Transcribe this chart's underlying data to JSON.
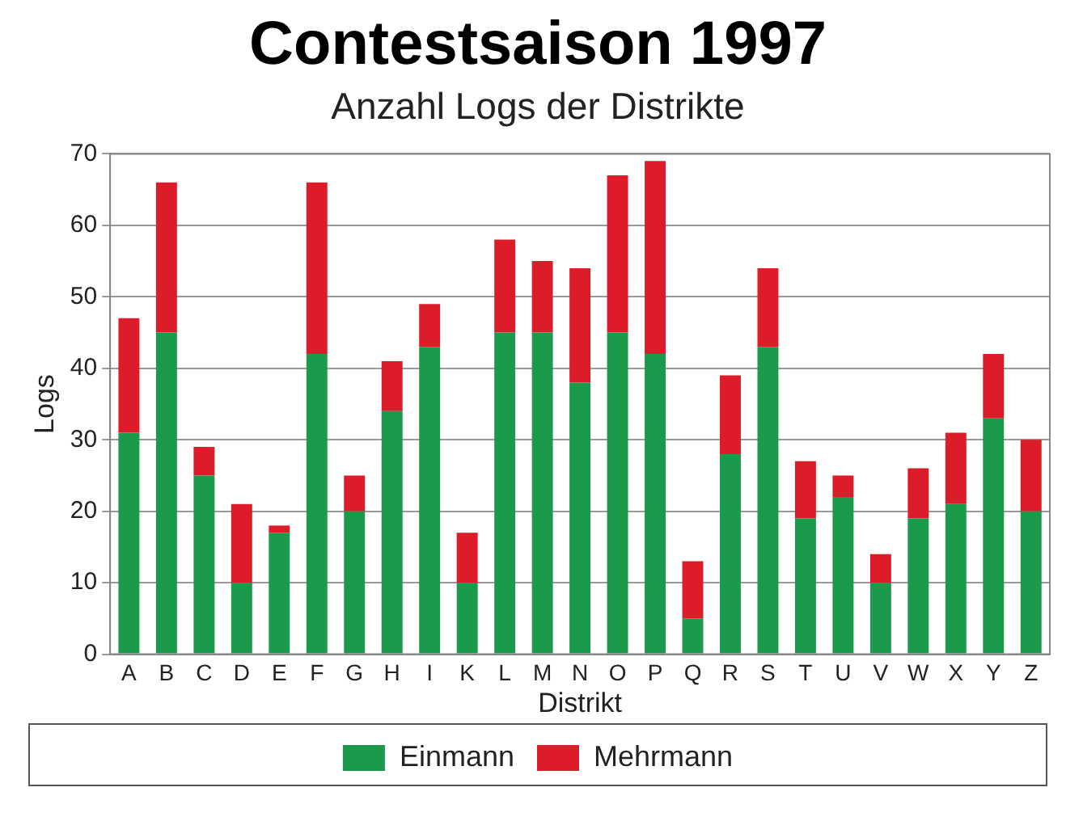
{
  "chart_data": {
    "type": "bar",
    "title": "Contestsaison 1997",
    "subtitle": "Anzahl Logs der Distrikte",
    "xlabel": "Distrikt",
    "ylabel": "Logs",
    "categories": [
      "A",
      "B",
      "C",
      "D",
      "E",
      "F",
      "G",
      "H",
      "I",
      "K",
      "L",
      "M",
      "N",
      "O",
      "P",
      "Q",
      "R",
      "S",
      "T",
      "U",
      "V",
      "W",
      "X",
      "Y",
      "Z"
    ],
    "series": [
      {
        "name": "Einmann",
        "color": "#1a9a4a",
        "values": [
          31,
          45,
          25,
          10,
          17,
          42,
          20,
          34,
          43,
          10,
          45,
          45,
          38,
          45,
          42,
          5,
          28,
          43,
          19,
          22,
          10,
          19,
          21,
          33,
          20
        ]
      },
      {
        "name": "Mehrmann",
        "color": "#dd1c2a",
        "values": [
          16,
          21,
          4,
          11,
          1,
          24,
          5,
          7,
          6,
          7,
          13,
          10,
          16,
          22,
          27,
          8,
          11,
          11,
          8,
          3,
          4,
          7,
          10,
          9,
          10
        ]
      }
    ],
    "stacked": true,
    "ylim": [
      0,
      70
    ],
    "yticks": [
      0,
      10,
      20,
      30,
      40,
      50,
      60,
      70
    ],
    "grid": "y",
    "legend": "bottom"
  }
}
